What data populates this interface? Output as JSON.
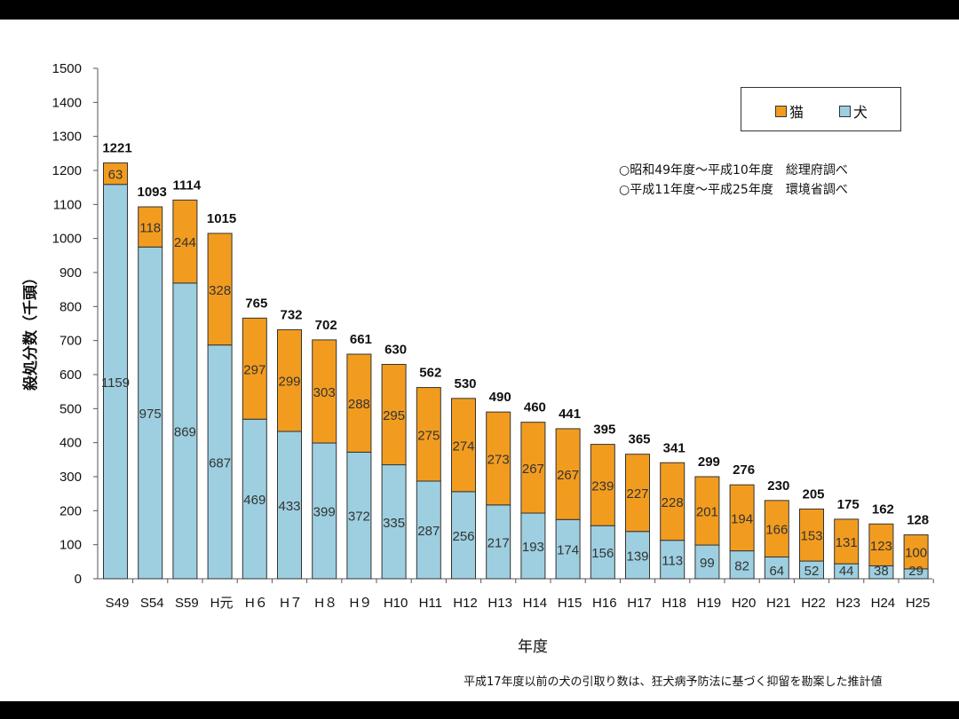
{
  "chart_data": {
    "type": "bar",
    "stacked": true,
    "title": "",
    "xlabel": "年度",
    "ylabel": "殺処分数（千頭）",
    "ylim": [
      0,
      1500
    ],
    "yticks": [
      0,
      100,
      200,
      300,
      400,
      500,
      600,
      700,
      800,
      900,
      1000,
      1100,
      1200,
      1300,
      1400,
      1500
    ],
    "grid": false,
    "legend_position": "top-right",
    "categories": [
      "S49",
      "S54",
      "S59",
      "H元",
      "H６",
      "H７",
      "H８",
      "H９",
      "H10",
      "H11",
      "H12",
      "H13",
      "H14",
      "H15",
      "H16",
      "H17",
      "H18",
      "H19",
      "H20",
      "H21",
      "H22",
      "H23",
      "H24",
      "H25"
    ],
    "series": [
      {
        "name": "犬",
        "color": "#9dcfe0",
        "values": [
          1159,
          975,
          869,
          687,
          469,
          433,
          399,
          372,
          335,
          287,
          256,
          217,
          193,
          174,
          156,
          139,
          113,
          99,
          82,
          64,
          52,
          44,
          38,
          29
        ]
      },
      {
        "name": "猫",
        "color": "#f29c1f",
        "values": [
          63,
          118,
          244,
          328,
          297,
          299,
          303,
          288,
          295,
          275,
          274,
          273,
          267,
          267,
          239,
          227,
          228,
          201,
          194,
          166,
          153,
          131,
          123,
          100
        ]
      }
    ],
    "totals": [
      1221,
      1093,
      1114,
      1015,
      765,
      732,
      702,
      661,
      630,
      562,
      530,
      490,
      460,
      441,
      395,
      365,
      341,
      299,
      276,
      230,
      205,
      175,
      162,
      128
    ]
  },
  "legend": {
    "cat_label": "猫",
    "dog_label": "犬"
  },
  "notes": [
    "○昭和49年度～平成10年度　総理府調べ",
    "○平成11年度～平成25年度　環境省調べ"
  ],
  "footnote": "平成17年度以前の犬の引取り数は、狂犬病予防法に基づく抑留を勘案した推計値"
}
